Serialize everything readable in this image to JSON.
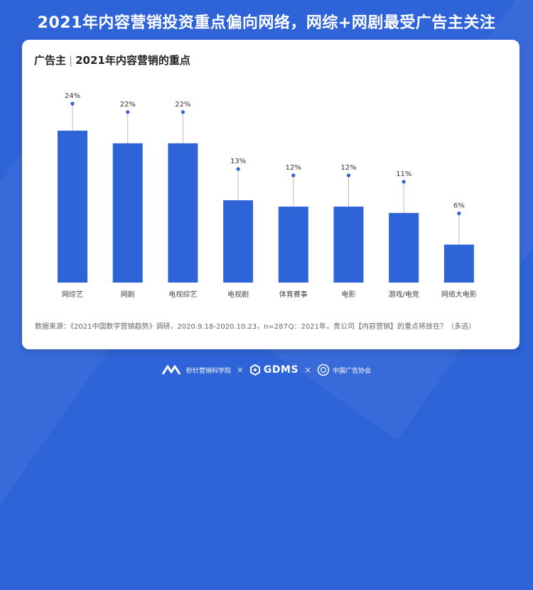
{
  "headline": "2021年内容营销投资重点偏向网络，网综+网剧最受广告主关注",
  "card": {
    "title_prefix": "广告主",
    "title_sep": "|",
    "title_main": "2021年内容营销的重点"
  },
  "footnotes": {
    "source": "数据来源：《2021中国数字营销趋势》调研，2020.9.18-2020.10.23，n=287",
    "question": "Q：2021年，贵公司【内容营销】的重点将放在？（多选）"
  },
  "footer": {
    "brand1": "秒针营销科学院",
    "times1": "×",
    "brand2": "GDMS",
    "times2": "×",
    "brand3": "中国广告协会"
  },
  "colors": {
    "bar": "#2f63d8",
    "accent": "#2f63d8",
    "background": "#2f63d8"
  },
  "chart_data": {
    "type": "bar",
    "title": "2021年内容营销的重点",
    "categories": [
      "网综艺",
      "网剧",
      "电视综艺",
      "电视剧",
      "体育赛事",
      "电影",
      "游戏/电竞",
      "网络大电影"
    ],
    "values": [
      24,
      22,
      22,
      13,
      12,
      12,
      11,
      6
    ],
    "labels": [
      "24%",
      "22%",
      "22%",
      "13%",
      "12%",
      "12%",
      "11%",
      "6%"
    ],
    "unit": "%",
    "ylim": [
      0,
      24
    ],
    "grid": false,
    "legend": "none"
  }
}
